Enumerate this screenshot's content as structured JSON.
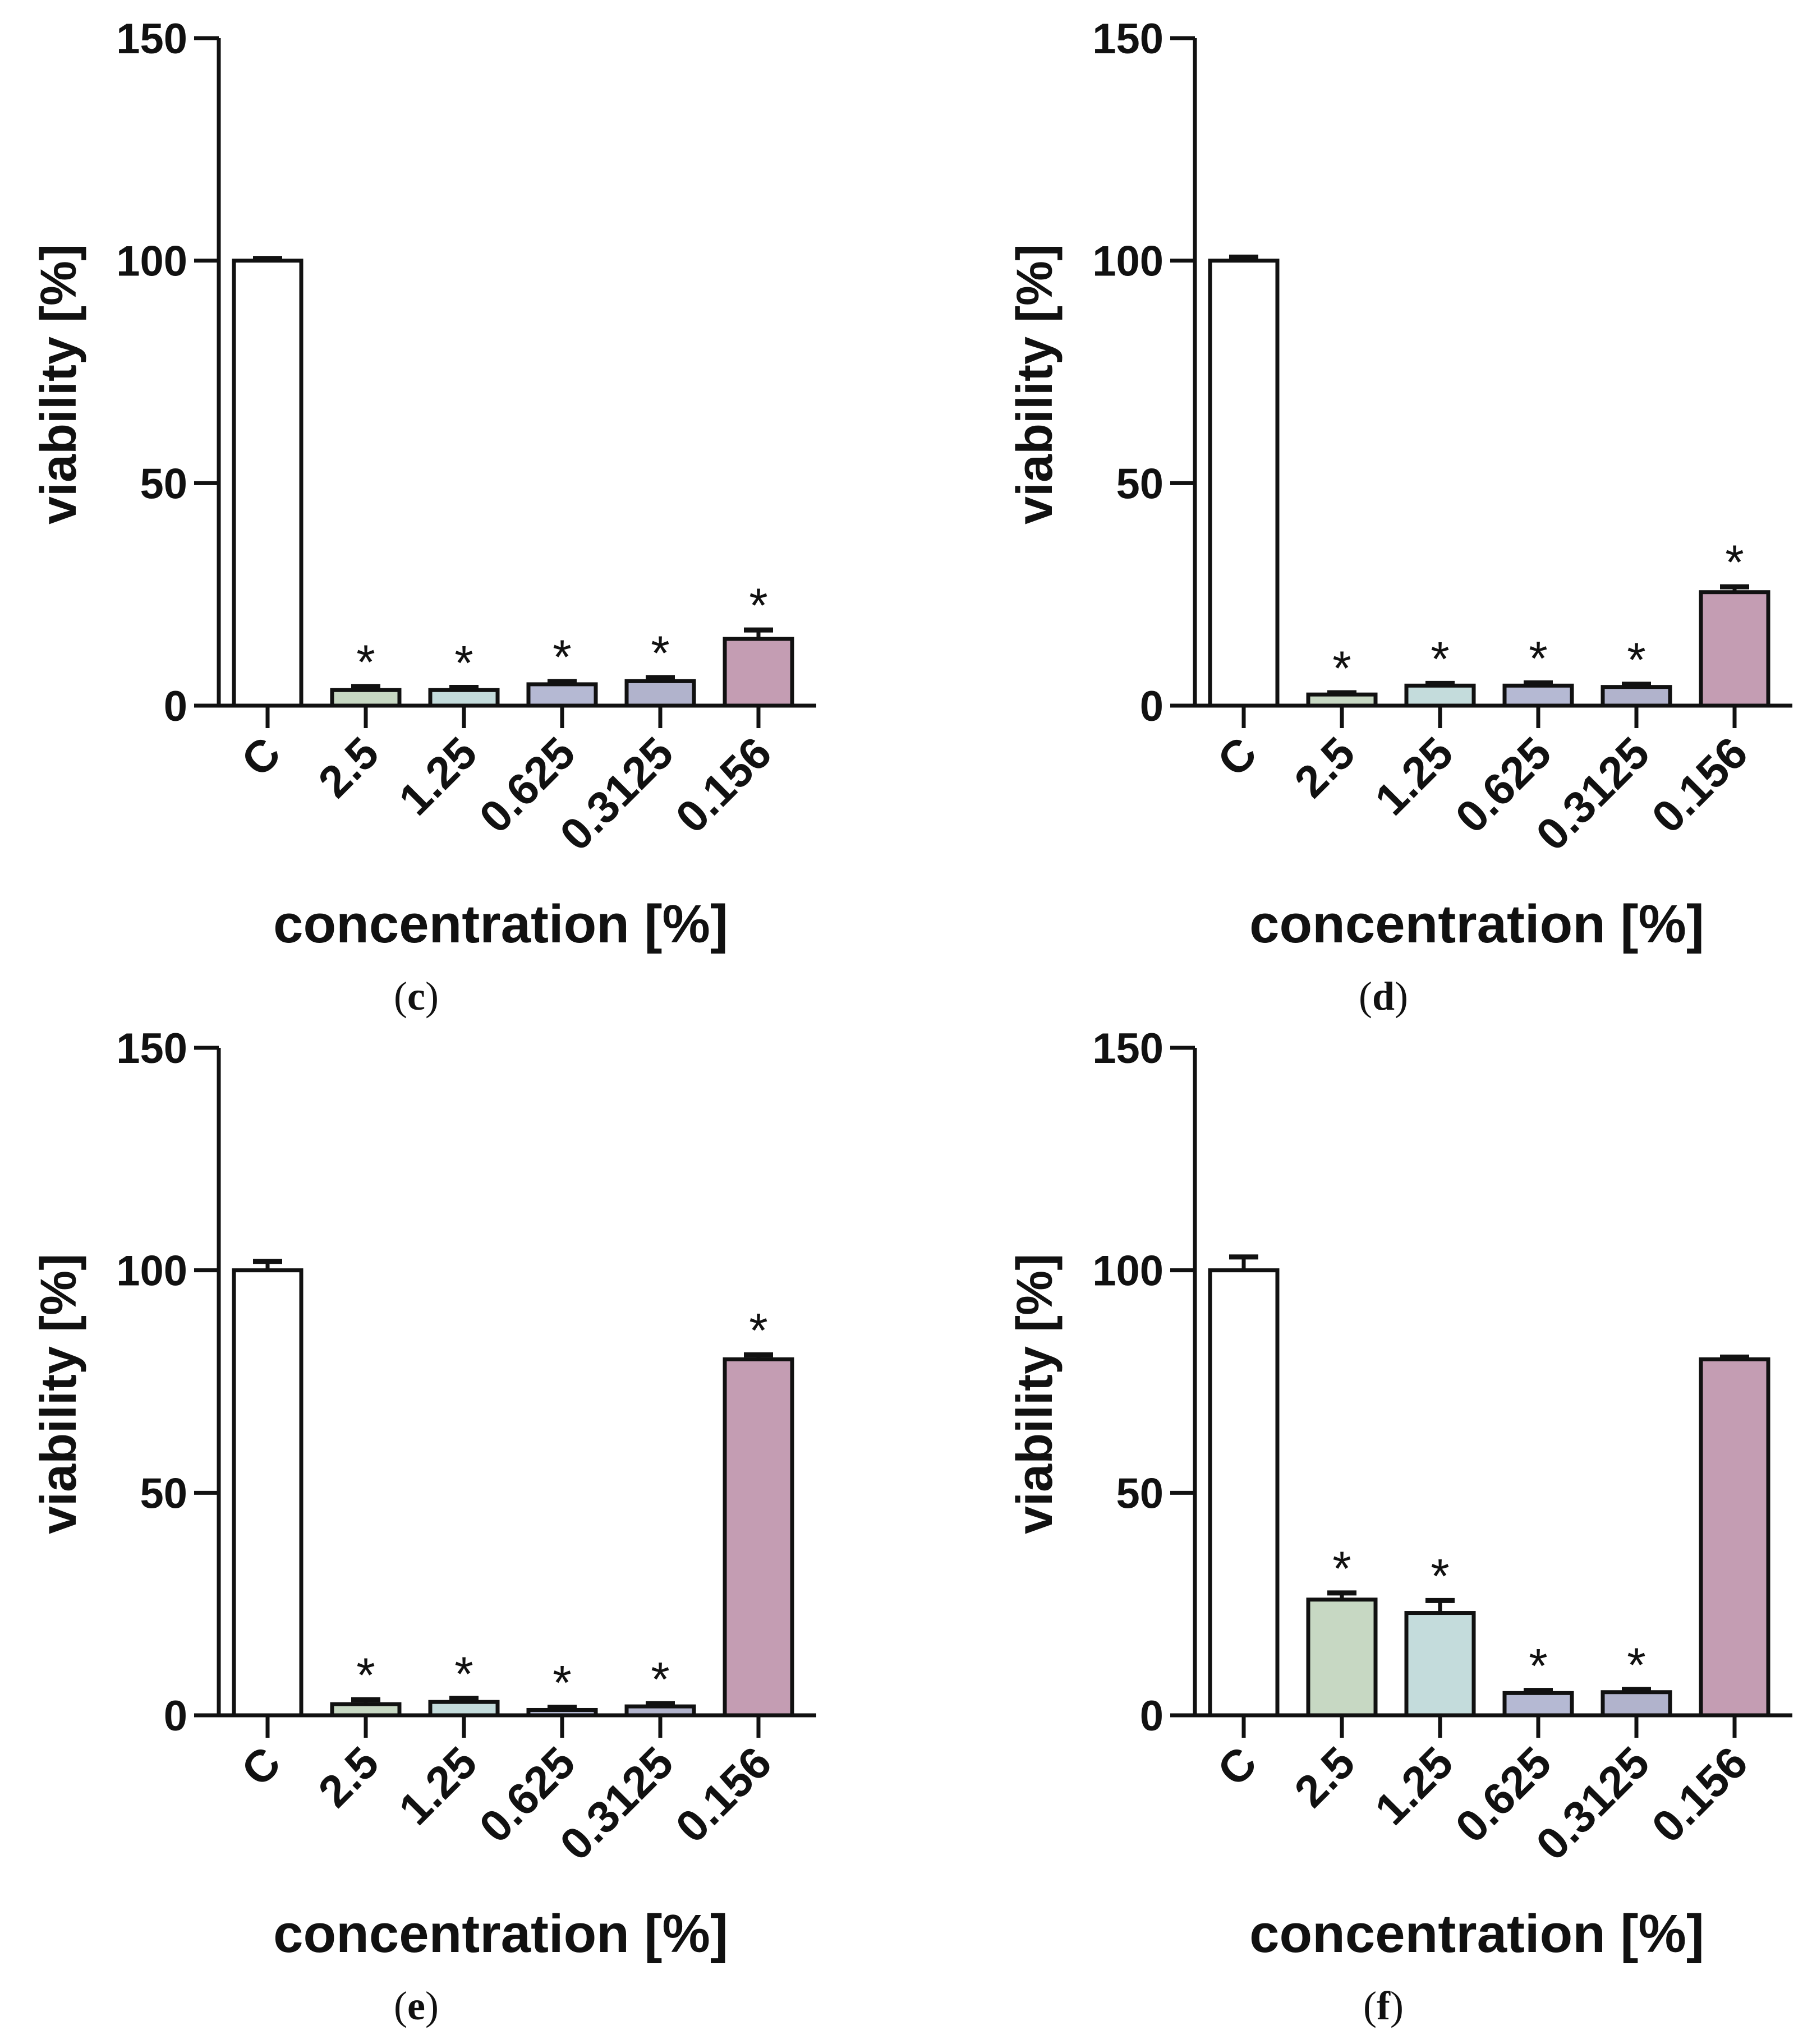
{
  "chart_data": [
    {
      "type": "bar",
      "panel": "c",
      "categories": [
        "C",
        "2.5",
        "1.25",
        "0.625",
        "0.3125",
        "0.156"
      ],
      "values": [
        100,
        3.5,
        3.5,
        4.8,
        5.5,
        15
      ],
      "errors": [
        0.5,
        0.8,
        0.6,
        0.6,
        0.8,
        2.0
      ],
      "significance": [
        "",
        "*",
        "*",
        "*",
        "*",
        "*"
      ],
      "colors": [
        "#ffffff",
        "#c7d8c3",
        "#c4dcdc",
        "#b5b9d3",
        "#b1b3cc",
        "#c49db3"
      ],
      "ylabel": "viability [%]",
      "xlabel": "concentration [%]",
      "ylim": [
        0,
        150
      ],
      "yticks": [
        "0",
        "50",
        "100",
        "150"
      ]
    },
    {
      "type": "bar",
      "panel": "d",
      "categories": [
        "C",
        "2.5",
        "1.25",
        "0.625",
        "0.3125",
        "0.156"
      ],
      "values": [
        100,
        2.5,
        4.5,
        4.5,
        4.2,
        25.5
      ],
      "errors": [
        0.8,
        0.4,
        0.5,
        0.6,
        0.6,
        1.2
      ],
      "significance": [
        "",
        "*",
        "*",
        "*",
        "*",
        "*"
      ],
      "colors": [
        "#ffffff",
        "#c7d8c3",
        "#c4dcdc",
        "#b5b9d3",
        "#b1b3cc",
        "#c49db3"
      ],
      "ylabel": "viability [%]",
      "xlabel": "concentration [%]",
      "ylim": [
        0,
        150
      ],
      "yticks": [
        "0",
        "50",
        "100",
        "150"
      ]
    },
    {
      "type": "bar",
      "panel": "e",
      "categories": [
        "C",
        "2.5",
        "1.25",
        "0.625",
        "0.3125",
        "0.156"
      ],
      "values": [
        100,
        2.5,
        3.0,
        1.2,
        2.0,
        80
      ],
      "errors": [
        2.0,
        1.0,
        0.8,
        0.6,
        0.6,
        1.0
      ],
      "significance": [
        "",
        "*",
        "*",
        "*",
        "*",
        "*"
      ],
      "colors": [
        "#ffffff",
        "#c7d8c3",
        "#c4dcdc",
        "#b5b9d3",
        "#b1b3cc",
        "#c49db3"
      ],
      "ylabel": "viability [%]",
      "xlabel": "concentration [%]",
      "ylim": [
        0,
        150
      ],
      "yticks": [
        "0",
        "50",
        "100",
        "150"
      ]
    },
    {
      "type": "bar",
      "panel": "f",
      "categories": [
        "C",
        "2.5",
        "1.25",
        "0.625",
        "0.3125",
        "0.156"
      ],
      "values": [
        100,
        26,
        23,
        5,
        5.2,
        80
      ],
      "errors": [
        3.0,
        1.5,
        2.8,
        0.6,
        0.6,
        0.5
      ],
      "significance": [
        "",
        "*",
        "*",
        "*",
        "*",
        ""
      ],
      "colors": [
        "#ffffff",
        "#c7d8c3",
        "#c4dcdc",
        "#b5b9d3",
        "#b1b3cc",
        "#c49db3"
      ],
      "ylabel": "viability [%]",
      "xlabel": "concentration [%]",
      "ylim": [
        0,
        150
      ],
      "yticks": [
        "0",
        "50",
        "100",
        "150"
      ]
    }
  ],
  "panel_labels": [
    "c",
    "d",
    "e",
    "f"
  ]
}
